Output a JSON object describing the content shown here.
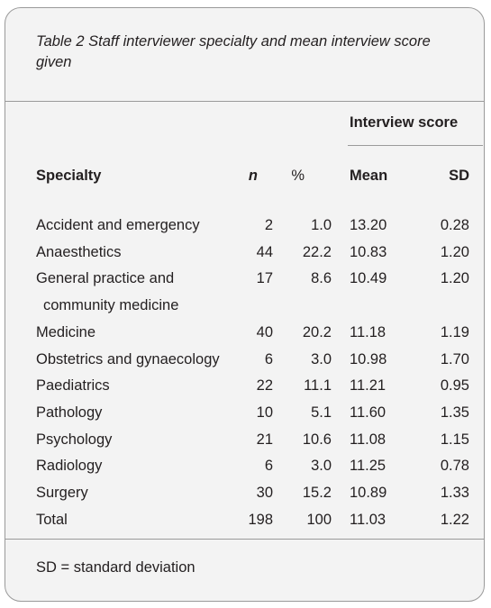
{
  "title": "Table 2  Staff interviewer specialty and mean interview score given",
  "table": {
    "group_header": "Interview score",
    "columns": [
      "Specialty",
      "n",
      "%",
      "Mean",
      "SD"
    ],
    "rows": [
      [
        "Accident and emergency",
        "2",
        "1.0",
        "13.20",
        "0.28"
      ],
      [
        "Anaesthetics",
        "44",
        "22.2",
        "10.83",
        "1.20"
      ],
      [
        "General practice and community medicine",
        "17",
        "8.6",
        "10.49",
        "1.20"
      ],
      [
        "Medicine",
        "40",
        "20.2",
        "11.18",
        "1.19"
      ],
      [
        "Obstetrics and gynaecology",
        "6",
        "3.0",
        "10.98",
        "1.70"
      ],
      [
        "Paediatrics",
        "22",
        "11.1",
        "11.21",
        "0.95"
      ],
      [
        "Pathology",
        "10",
        "5.1",
        "11.60",
        "1.35"
      ],
      [
        "Psychology",
        "21",
        "10.6",
        "11.08",
        "1.15"
      ],
      [
        "Radiology",
        "6",
        "3.0",
        "11.25",
        "0.78"
      ],
      [
        "Surgery",
        "30",
        "15.2",
        "10.89",
        "1.33"
      ],
      [
        "Total",
        "198",
        "100",
        "11.03",
        "1.22"
      ]
    ]
  },
  "footnote": "SD = standard deviation"
}
